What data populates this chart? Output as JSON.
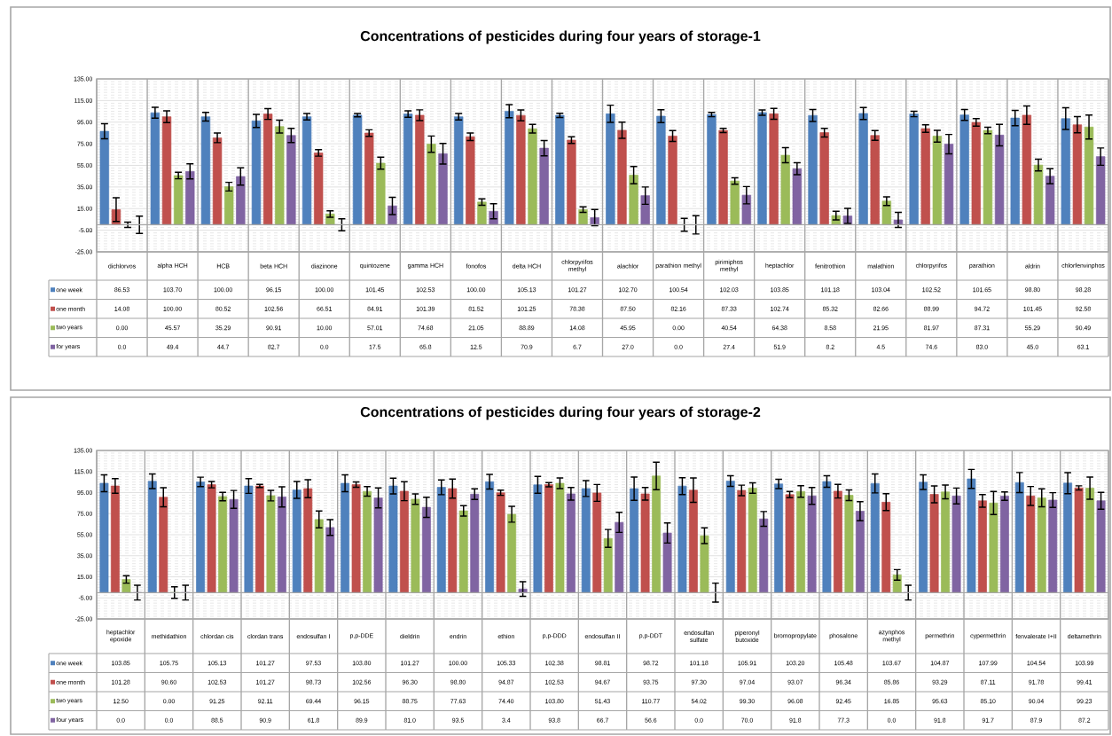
{
  "chart_data": [
    {
      "type": "bar",
      "title": "Concentrations of pesticides during four years of storage-1",
      "categories": [
        "dichlorvos",
        "alpha HCH",
        "HCB",
        "beta HCH",
        "diazinone",
        "quintozene",
        "gamma HCH",
        "fonofos",
        "delta HCH",
        "chlorpyrifos methyl",
        "alachlor",
        "parathion methyl",
        "pirimiphos methyl",
        "heptachlor",
        "fenitrothion",
        "malathion",
        "chlorpyrifos",
        "parathion",
        "aldrin",
        "chlorfenvinphos"
      ],
      "series": [
        {
          "name": "one week",
          "color": "#4f81bd",
          "values": [
            86.53,
            103.7,
            100.0,
            96.15,
            100.0,
            101.45,
            102.53,
            100.0,
            105.13,
            101.27,
            102.7,
            100.54,
            102.03,
            103.85,
            101.18,
            103.04,
            102.52,
            101.65,
            98.8,
            98.28
          ],
          "errors": [
            7,
            5,
            4,
            6,
            3,
            1.5,
            3,
            3,
            6,
            2,
            8,
            6,
            2,
            2.5,
            5.5,
            5.5,
            2.5,
            5,
            7,
            10
          ],
          "value_labels": [
            "86.53",
            "103.70",
            "100.00",
            "96.15",
            "100.00",
            "101.45",
            "102.53",
            "100.00",
            "105.13",
            "101.27",
            "102.70",
            "100.54",
            "102.03",
            "103.85",
            "101.18",
            "103.04",
            "102.52",
            "101.65",
            "98.80",
            "98.28"
          ]
        },
        {
          "name": "one month",
          "color": "#c0504d",
          "values": [
            14.08,
            100.0,
            80.52,
            102.56,
            66.51,
            84.91,
            101.39,
            81.52,
            101.25,
            78.38,
            87.5,
            82.16,
            87.33,
            102.74,
            85.32,
            82.66,
            88.99,
            94.72,
            101.45,
            92.58
          ],
          "errors": [
            11,
            5.5,
            4.5,
            5,
            3,
            3,
            5,
            3.5,
            5,
            3,
            7.5,
            5,
            2,
            5,
            4,
            4.5,
            3.5,
            3.5,
            8.5,
            7.5
          ],
          "value_labels": [
            "14.08",
            "100.00",
            "80.52",
            "102.56",
            "66.51",
            "84.91",
            "101.39",
            "81.52",
            "101.25",
            "78.38",
            "87.50",
            "82.16",
            "87.33",
            "102.74",
            "85.32",
            "82.66",
            "88.99",
            "94.72",
            "101.45",
            "92.58"
          ]
        },
        {
          "name": "two years",
          "color": "#9bbb59",
          "values": [
            0.0,
            45.57,
            35.29,
            90.91,
            10.0,
            57.01,
            74.68,
            21.05,
            88.89,
            14.08,
            45.95,
            0.0,
            40.54,
            64.38,
            8.58,
            21.95,
            81.97,
            87.31,
            55.29,
            90.49
          ],
          "errors": [
            2.5,
            3,
            4,
            6,
            3,
            5.5,
            7.5,
            3,
            4,
            2.5,
            8,
            6,
            3,
            7,
            4,
            4,
            5.5,
            3,
            5.5,
            11
          ],
          "value_labels": [
            "0.00",
            "45.57",
            "35.29",
            "90.91",
            "10.00",
            "57.01",
            "74.68",
            "21.05",
            "88.89",
            "14.08",
            "45.95",
            "0.00",
            "40.54",
            "64.38",
            "8.58",
            "21.95",
            "81.97",
            "87.31",
            "55.29",
            "90.49"
          ]
        },
        {
          "name": "for years",
          "color": "#8064a2",
          "values": [
            0.0,
            49.4,
            44.7,
            82.7,
            0.0,
            17.5,
            65.8,
            12.5,
            70.9,
            6.7,
            27.0,
            0.0,
            27.4,
            51.9,
            8.2,
            4.5,
            74.6,
            83.0,
            45.0,
            63.1
          ],
          "errors": [
            8,
            7,
            8,
            6.5,
            5.5,
            8,
            9.5,
            7,
            7,
            7.5,
            8,
            8.5,
            8,
            5.5,
            7,
            7,
            9,
            10,
            7,
            8
          ],
          "value_labels": [
            "0.0",
            "49.4",
            "44.7",
            "82.7",
            "0.0",
            "17.5",
            "65.8",
            "12.5",
            "70.9",
            "6.7",
            "27.0",
            "0.0",
            "27.4",
            "51.9",
            "8.2",
            "4.5",
            "74.6",
            "83.0",
            "45.0",
            "63.1"
          ]
        }
      ],
      "ylim": [
        -25,
        135
      ],
      "yticks": [
        {
          "value": -25,
          "label": "-25.00"
        },
        {
          "value": -5,
          "label": "-5.00"
        },
        {
          "value": 15,
          "label": "15.00"
        },
        {
          "value": 35,
          "label": "35.00"
        },
        {
          "value": 55,
          "label": "55.00"
        },
        {
          "value": 75,
          "label": "75.00"
        },
        {
          "value": 95,
          "label": "95.00"
        },
        {
          "value": 115,
          "label": "115.00"
        },
        {
          "value": 135,
          "label": "135.00"
        }
      ],
      "grid": "y",
      "legend": "bottom"
    },
    {
      "type": "bar",
      "title": "Concentrations of pesticides during four years of storage-2",
      "categories": [
        "heptachlor epoxide",
        "methidathion",
        "chlordan cis",
        "clordan trans",
        "endosulfan I",
        "p,p-DDE",
        "dieldrin",
        "endrin",
        "ethion",
        "p,p-DDD",
        "endosulfan II",
        "p,p-DDT",
        "endosulfan sulfate",
        "piperonyl butoxide",
        "bromopropylate",
        "phosalone",
        "azynphos methyl",
        "permethrin",
        "cypermethrin",
        "fenvalerate I+II",
        "deltamethrin"
      ],
      "series": [
        {
          "name": "one week",
          "color": "#4f81bd",
          "values": [
            103.85,
            105.75,
            105.13,
            101.27,
            97.53,
            103.8,
            101.27,
            100.0,
            105.33,
            102.38,
            98.81,
            98.72,
            101.18,
            105.91,
            103.2,
            105.48,
            103.67,
            104.87,
            107.99,
            104.54,
            103.99
          ],
          "errors": [
            8,
            7,
            4.5,
            7,
            8,
            8,
            7.5,
            7,
            7,
            8,
            7.5,
            11,
            8,
            5,
            4.5,
            5.5,
            9,
            7,
            9,
            9.5,
            10
          ],
          "value_labels": [
            "103.85",
            "105.75",
            "105.13",
            "101.27",
            "97.53",
            "103.80",
            "101.27",
            "100.00",
            "105.33",
            "102.38",
            "98.81",
            "98.72",
            "101.18",
            "105.91",
            "103.20",
            "105.48",
            "103.67",
            "104.87",
            "107.99",
            "104.54",
            "103.99"
          ]
        },
        {
          "name": "one month",
          "color": "#c0504d",
          "values": [
            101.28,
            90.6,
            102.53,
            101.27,
            98.73,
            102.56,
            96.3,
            98.8,
            94.87,
            102.53,
            94.67,
            93.75,
            97.3,
            97.04,
            93.07,
            96.34,
            85.86,
            93.29,
            87.11,
            91.78,
            99.41
          ],
          "errors": [
            7,
            9,
            3,
            1.5,
            8.5,
            2.5,
            9,
            9,
            2.5,
            2,
            8,
            6,
            11.5,
            5,
            3,
            6.5,
            8,
            8,
            6,
            9,
            2
          ],
          "value_labels": [
            "101.28",
            "90.60",
            "102.53",
            "101.27",
            "98.73",
            "102.56",
            "96.30",
            "98.80",
            "94.87",
            "102.53",
            "94.67",
            "93.75",
            "97.30",
            "97.04",
            "93.07",
            "96.34",
            "85.86",
            "93.29",
            "87.11",
            "91.78",
            "99.41"
          ]
        },
        {
          "name": "two years",
          "color": "#9bbb59",
          "values": [
            12.5,
            0.0,
            91.25,
            92.11,
            69.44,
            96.15,
            88.75,
            77.63,
            74.4,
            103.8,
            51.43,
            110.77,
            54.02,
            99.3,
            96.08,
            92.45,
            16.85,
            95.63,
            85.1,
            90.04,
            99.23
          ],
          "errors": [
            3.5,
            5.5,
            4,
            5,
            8,
            4.5,
            5,
            5,
            7.5,
            5,
            8.5,
            13,
            7.5,
            5,
            5.5,
            5,
            5,
            6.5,
            11,
            8.5,
            10.5
          ],
          "value_labels": [
            "12.50",
            "0.00",
            "91.25",
            "92.11",
            "69.44",
            "96.15",
            "88.75",
            "77.63",
            "74.40",
            "103.80",
            "51.43",
            "110.77",
            "54.02",
            "99.30",
            "96.08",
            "92.45",
            "16.85",
            "95.63",
            "85.10",
            "90.04",
            "99.23"
          ]
        },
        {
          "name": "four years",
          "color": "#8064a2",
          "values": [
            0.0,
            0.0,
            88.5,
            90.9,
            61.8,
            89.9,
            81.0,
            93.5,
            3.4,
            93.8,
            66.7,
            56.6,
            0.0,
            70.0,
            91.8,
            77.3,
            0.0,
            91.8,
            91.7,
            87.9,
            87.2
          ],
          "errors": [
            7,
            7,
            8.5,
            9.5,
            7.5,
            9.5,
            9.5,
            5,
            7,
            6,
            9.5,
            9.5,
            9,
            7,
            8,
            9,
            7,
            7.5,
            4,
            7,
            8
          ],
          "value_labels": [
            "0.0",
            "0.0",
            "88.5",
            "90.9",
            "61.8",
            "89.9",
            "81.0",
            "93.5",
            "3.4",
            "93.8",
            "66.7",
            "56.6",
            "0.0",
            "70.0",
            "91.8",
            "77.3",
            "0.0",
            "91.8",
            "91.7",
            "87.9",
            "87.2"
          ]
        }
      ],
      "ylim": [
        -25,
        135
      ],
      "yticks": [
        {
          "value": -25,
          "label": "-25.00"
        },
        {
          "value": -5,
          "label": "-5.00"
        },
        {
          "value": 15,
          "label": "15.00"
        },
        {
          "value": 35,
          "label": "35.00"
        },
        {
          "value": 55,
          "label": "55.00"
        },
        {
          "value": 75,
          "label": "75.00"
        },
        {
          "value": 95,
          "label": "95.00"
        },
        {
          "value": 115,
          "label": "115.00"
        },
        {
          "value": 135,
          "label": "135.00"
        }
      ],
      "grid": "y",
      "legend": "bottom"
    }
  ]
}
